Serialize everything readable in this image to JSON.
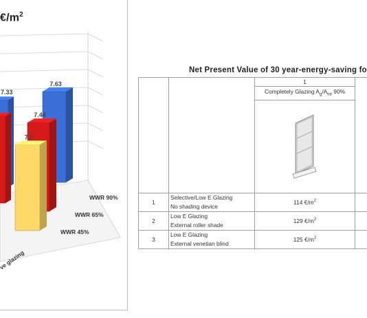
{
  "chart_panel": {
    "unit": "€/m",
    "unit_sup": "2"
  },
  "chart_data": [
    {
      "type": "bar",
      "title": "€/m2",
      "categories": [
        "WWR 90%",
        "WWR 65%",
        "WWR 45%"
      ],
      "series": [
        {
          "name": "",
          "color": "#3a6fd8",
          "values": [
            7.33,
            7.63,
            null
          ]
        },
        {
          "name": "",
          "color": "#d61a1a",
          "values": [
            null,
            7.44,
            null
          ]
        },
        {
          "name": "",
          "color": "#ffd966",
          "values": [
            7.2,
            null,
            null
          ]
        }
      ],
      "visible_text": [
        "7.33",
        "7.63",
        "7.44",
        "7.2",
        "WWR 90%",
        "WWR 65%",
        "WWR 45%",
        "ve glazing"
      ],
      "grid": true
    },
    {
      "type": "table",
      "title": "Net Present Value of 30 year-energy-saving fo",
      "columns": [
        "",
        "",
        "1",
        ""
      ],
      "rows": [
        {
          "index": "1",
          "lines": [
            "Selective/Low E Glazing",
            "No shading device"
          ],
          "value": "114 €/m",
          "sup": "2"
        },
        {
          "index": "2",
          "lines": [
            "Low E Glazing",
            "External roller shade"
          ],
          "value": "129 €/m",
          "sup": "2"
        },
        {
          "index": "3",
          "lines": [
            "Low E Glazing",
            "External venetian blind"
          ],
          "value": "125 €/m",
          "sup": "2"
        }
      ]
    }
  ],
  "table": {
    "title": "Net Present Value of 30 year-energy-saving fo",
    "col_number": "1",
    "col_label_prefix": "Completely Glazing A",
    "col_label_sub1": "g",
    "col_label_slash": "/A",
    "col_label_sub2": "tot",
    "col_label_suffix": " 90%",
    "rows": [
      {
        "index": "1",
        "line1": "Selective/Low E Glazing",
        "line2": "No shading device",
        "value": "114 €/m",
        "sup": "2"
      },
      {
        "index": "2",
        "line1": "Low E Glazing",
        "line2": "External roller shade",
        "value": "129 €/m",
        "sup": "2"
      },
      {
        "index": "3",
        "line1": "Low E Glazing",
        "line2": "External venetian blind",
        "value": "125 €/m",
        "sup": "2"
      }
    ]
  }
}
